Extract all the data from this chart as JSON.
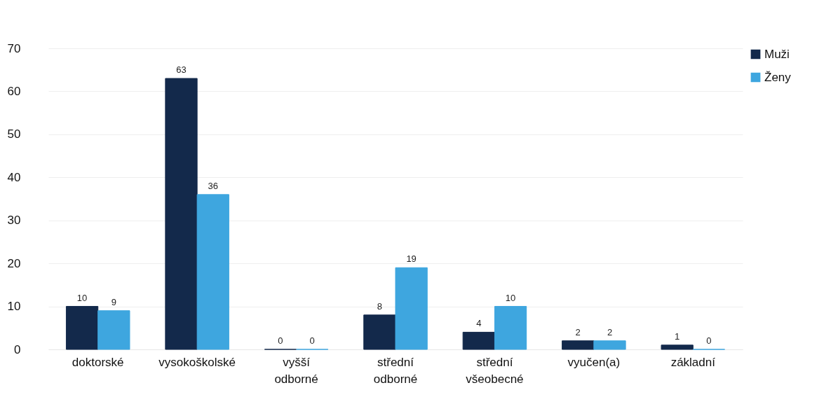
{
  "chart_data": {
    "type": "bar",
    "categories": [
      "doktorské",
      "vysokoškolské",
      "vyšší odborné",
      "střední odborné",
      "střední všeobecné",
      "vyučen(a)",
      "základní"
    ],
    "series": [
      {
        "name": "Muži",
        "color": "#13294b",
        "values": [
          10,
          63,
          0,
          8,
          4,
          2,
          1
        ]
      },
      {
        "name": "Ženy",
        "color": "#3ea6df",
        "values": [
          9,
          36,
          0,
          19,
          10,
          2,
          0
        ]
      }
    ],
    "ylim": [
      0,
      70
    ],
    "yticks": [
      0,
      10,
      20,
      30,
      40,
      50,
      60,
      70
    ],
    "grid": "y",
    "legend": "right",
    "data_labels": true
  }
}
